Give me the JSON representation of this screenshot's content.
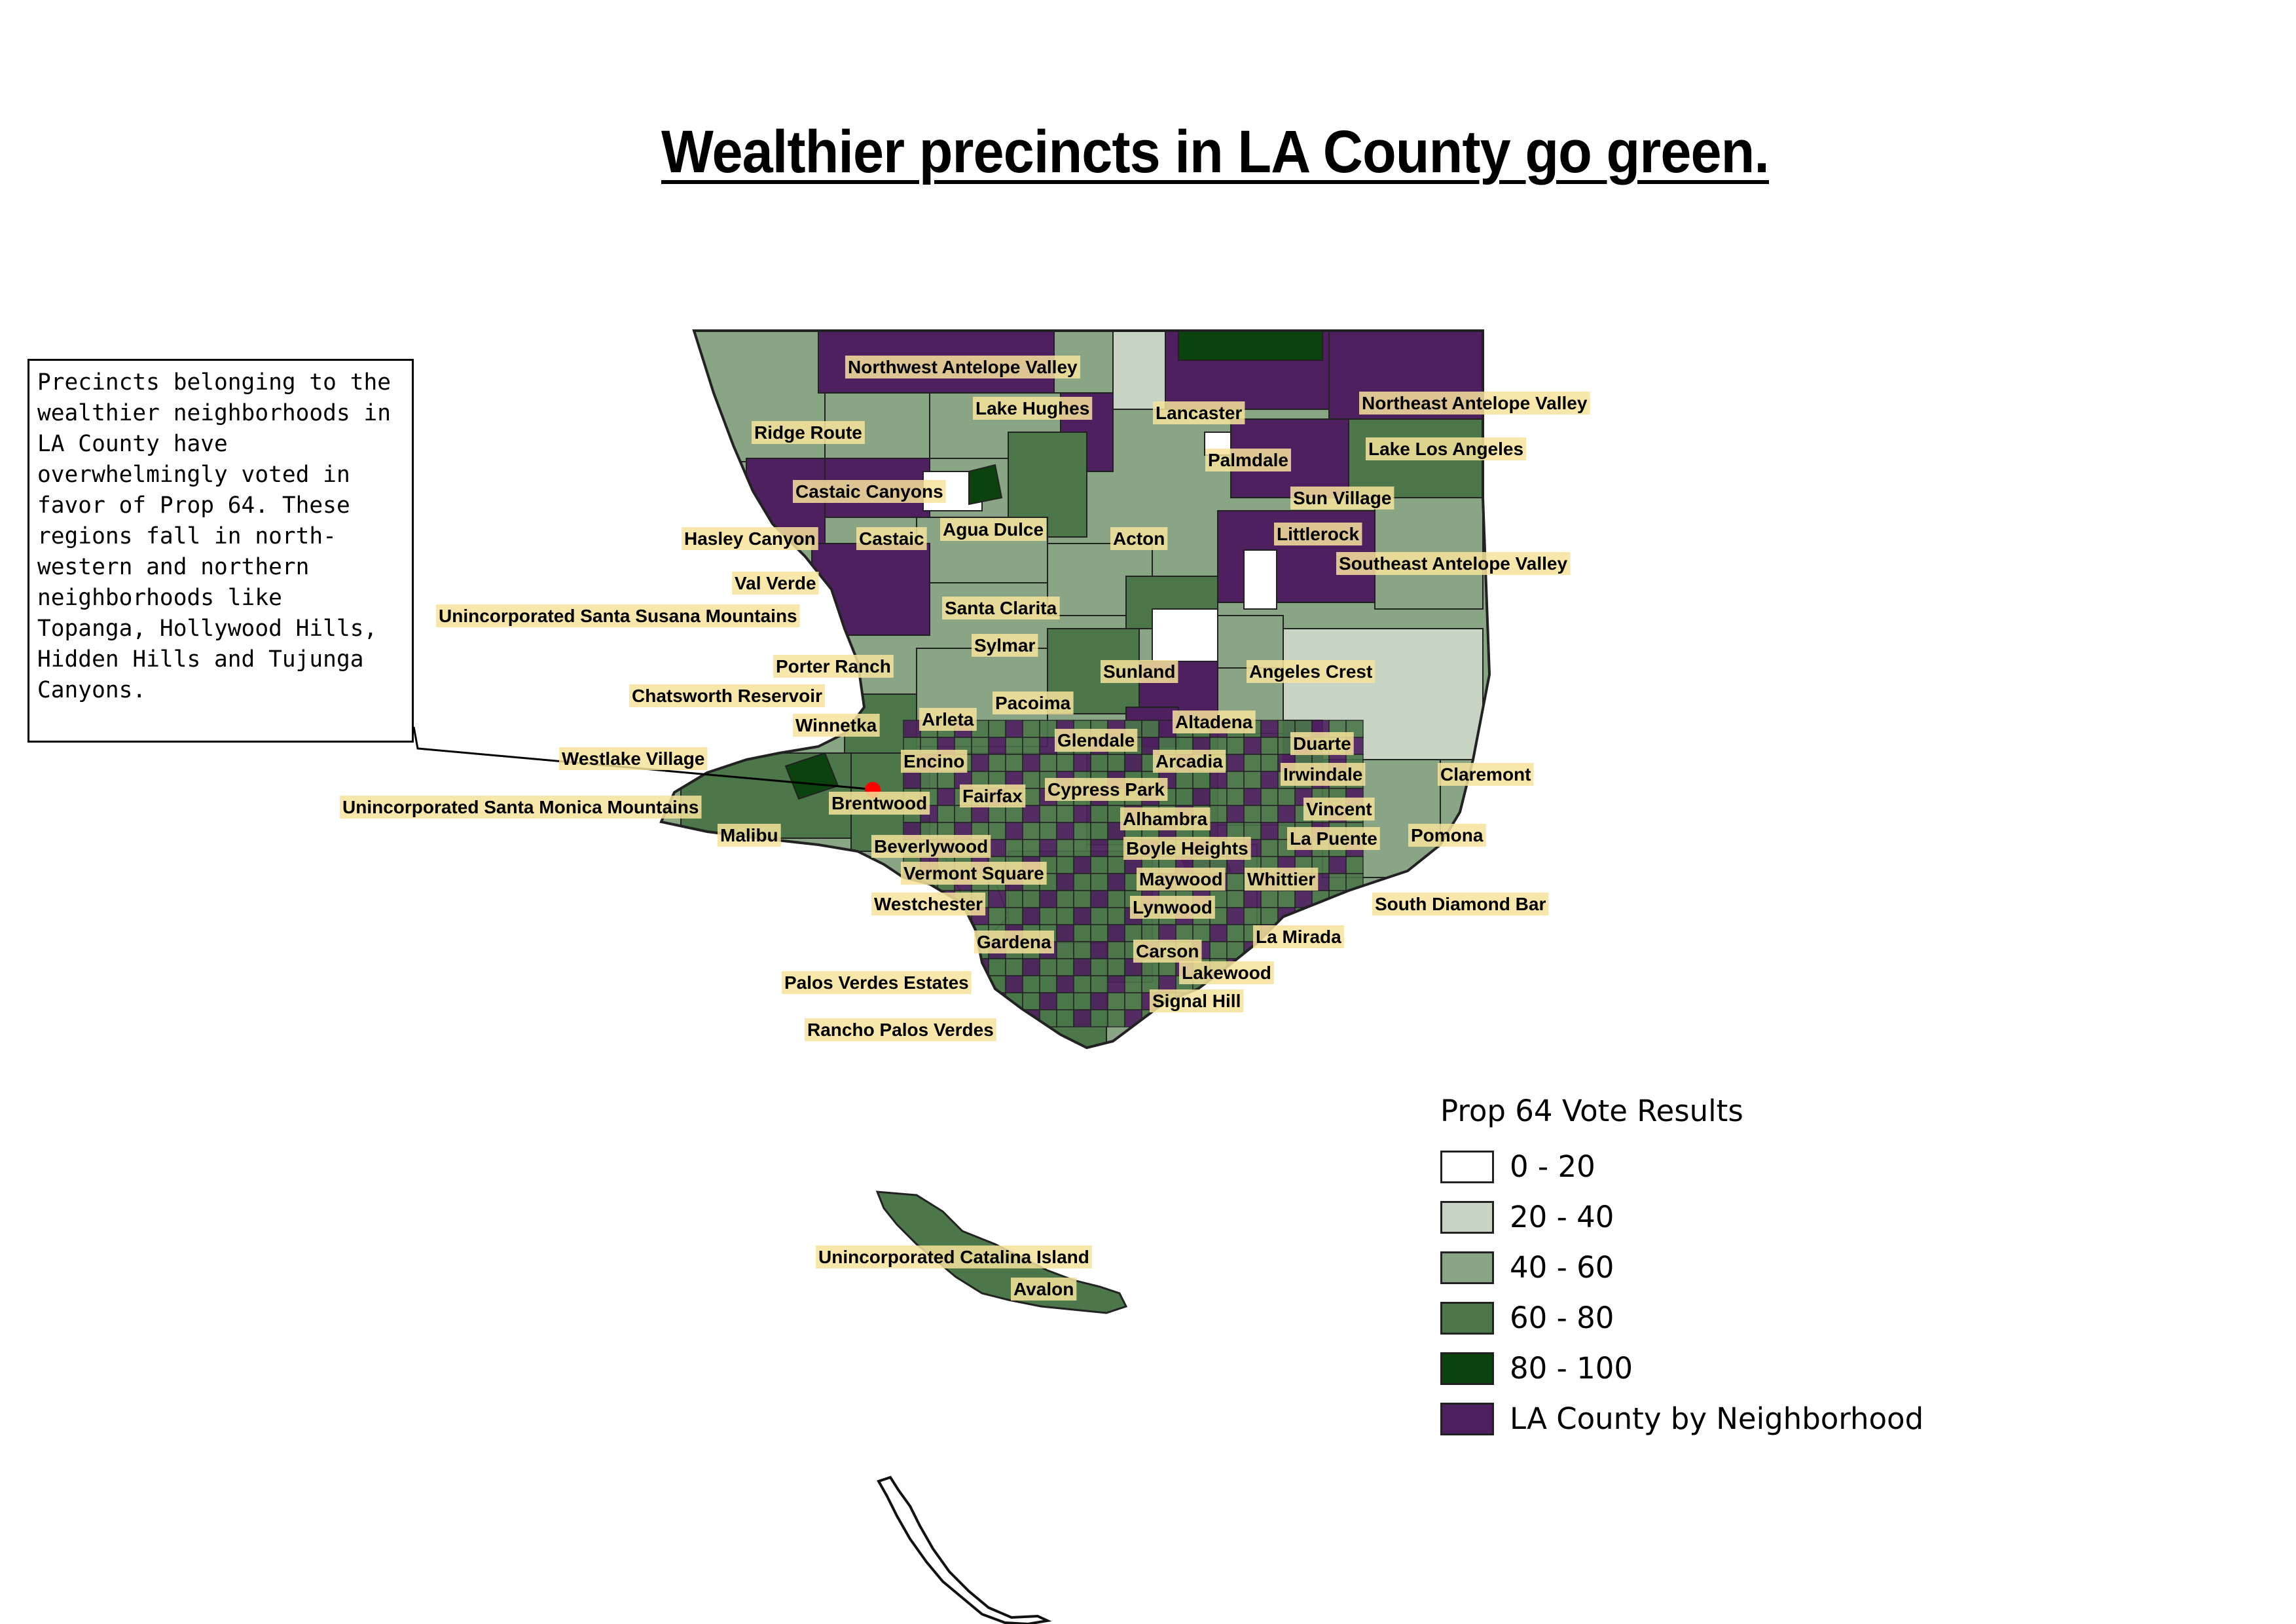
{
  "map": {
    "title": "Wealthier precincts in LA County go green.",
    "annotation": "Precincts belonging to the wealthier neighborhoods in LA County have overwhelmingly voted in favor of Prop 64. These regions fall in north-western and northern neighborhoods like Topanga, Hollywood Hills, Hidden Hills and Tujunga Canyons.",
    "marker_color": "#ff0000",
    "colors": {
      "c0_20": "#ffffff",
      "c20_40": "#c7d3c3",
      "c40_60": "#89a585",
      "c60_80": "#4b774a",
      "c80_100": "#0b430f",
      "neighborhood": "#4e2060",
      "outline": "#222222"
    },
    "neighborhoods": [
      "Northwest Antelope Valley",
      "Lancaster",
      "Lake Hughes",
      "Northeast Antelope Valley",
      "Ridge Route",
      "Palmdale",
      "Lake Los Angeles",
      "Castaic Canyons",
      "Sun Village",
      "Hasley Canyon",
      "Castaic",
      "Agua Dulce",
      "Acton",
      "Littlerock",
      "Southeast Antelope Valley",
      "Val Verde",
      "Santa Clarita",
      "Unincorporated Santa Susana Mountains",
      "Sylmar",
      "Porter Ranch",
      "Sunland",
      "Angeles Crest",
      "Chatsworth Reservoir",
      "Pacoima",
      "Winnetka",
      "Arleta",
      "Altadena",
      "Glendale",
      "Duarte",
      "Westlake Village",
      "Encino",
      "Arcadia",
      "Irwindale",
      "Claremont",
      "Cypress Park",
      "Unincorporated Santa Monica Mountains",
      "Brentwood",
      "Fairfax",
      "Alhambra",
      "Vincent",
      "Malibu",
      "La Puente",
      "Pomona",
      "Beverlywood",
      "Boyle Heights",
      "Vermont Square",
      "Maywood",
      "Whittier",
      "Westchester",
      "Lynwood",
      "South Diamond Bar",
      "La Mirada",
      "Gardena",
      "Carson",
      "Lakewood",
      "Palos Verdes Estates",
      "Signal Hill",
      "Rancho Palos Verdes",
      "Unincorporated Catalina Island",
      "Avalon"
    ]
  },
  "legend": {
    "title": "Prop 64 Vote Results",
    "items": [
      {
        "label": "0 - 20",
        "color": "#ffffff"
      },
      {
        "label": "20 - 40",
        "color": "#c7d3c3"
      },
      {
        "label": "40 - 60",
        "color": "#89a585"
      },
      {
        "label": "60 - 80",
        "color": "#4b774a"
      },
      {
        "label": "80 - 100",
        "color": "#0b430f"
      },
      {
        "label": "LA County by Neighborhood",
        "color": "#4e2060"
      }
    ]
  }
}
